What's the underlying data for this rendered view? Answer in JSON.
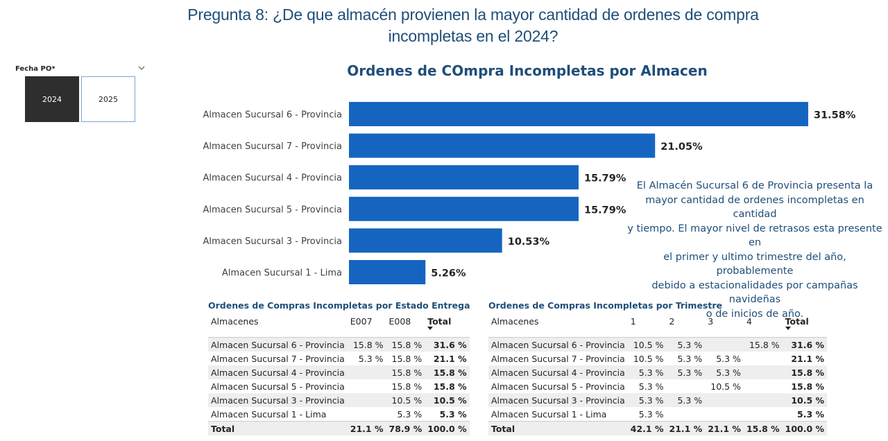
{
  "page": {
    "title": "Pregunta 8: ¿De que almacén provienen la mayor cantidad de ordenes de compra\nincompletas en el 2024?"
  },
  "slicer": {
    "label": "Fecha PO*",
    "options": [
      "2024",
      "2025"
    ],
    "selected": "2024"
  },
  "chart_data": {
    "type": "bar",
    "orientation": "horizontal",
    "title": "Ordenes de COmpra Incompletas por Almacen",
    "categories": [
      "Almacen Sucursal 6 - Provincia",
      "Almacen Sucursal 7 - Provincia",
      "Almacen Sucursal 4 - Provincia",
      "Almacen Sucursal 5 - Provincia",
      "Almacen Sucursal 3 - Provincia",
      "Almacen Sucursal 1 - Lima"
    ],
    "values": [
      31.58,
      21.05,
      15.79,
      15.79,
      10.53,
      5.26
    ],
    "data_labels": [
      "31.58%",
      "21.05%",
      "15.79%",
      "15.79%",
      "10.53%",
      "5.26%"
    ],
    "bar_color": "#1565c0",
    "xlim": [
      0,
      31.58
    ],
    "grid": false
  },
  "note": {
    "text": "El Almacén Sucursal 6 de Provincia presenta la\nmayor cantidad de ordenes incompletas en cantidad\ny tiempo. El mayor nivel de retrasos esta presente en\nel primer y ultimo trimestre del año, probablemente\ndebido a estacionalidades por campañas navideñas\no de inicios de año."
  },
  "table_estado": {
    "title": "Ordenes de Compras Incompletas por Estado Entrega",
    "columns": [
      "Almacenes",
      "E007",
      "E008",
      "Total"
    ],
    "rows": [
      [
        "Almacen Sucursal 6 - Provincia",
        "15.8 %",
        "15.8 %",
        "31.6 %"
      ],
      [
        "Almacen Sucursal 7 - Provincia",
        "5.3 %",
        "15.8 %",
        "21.1 %"
      ],
      [
        "Almacen Sucursal 4 - Provincia",
        "",
        "15.8 %",
        "15.8 %"
      ],
      [
        "Almacen Sucursal 5 - Provincia",
        "",
        "15.8 %",
        "15.8 %"
      ],
      [
        "Almacen Sucursal 3 - Provincia",
        "",
        "10.5 %",
        "10.5 %"
      ],
      [
        "Almacen Sucursal 1 - Lima",
        "",
        "5.3 %",
        "5.3 %"
      ]
    ],
    "total": [
      "Total",
      "21.1 %",
      "78.9 %",
      "100.0 %"
    ]
  },
  "table_trimestre": {
    "title": "Ordenes de Compras Incompletas por Trimestre",
    "columns": [
      "Almacenes",
      "1",
      "2",
      "3",
      "4",
      "Total"
    ],
    "rows": [
      [
        "Almacen Sucursal 6 - Provincia",
        "10.5 %",
        "5.3 %",
        "",
        "15.8 %",
        "31.6 %"
      ],
      [
        "Almacen Sucursal 7 - Provincia",
        "10.5 %",
        "5.3 %",
        "5.3 %",
        "",
        "21.1 %"
      ],
      [
        "Almacen Sucursal 4 - Provincia",
        "5.3 %",
        "5.3 %",
        "5.3 %",
        "",
        "15.8 %"
      ],
      [
        "Almacen Sucursal 5 - Provincia",
        "5.3 %",
        "",
        "10.5 %",
        "",
        "15.8 %"
      ],
      [
        "Almacen Sucursal 3 - Provincia",
        "5.3 %",
        "5.3 %",
        "",
        "",
        "10.5 %"
      ],
      [
        "Almacen Sucursal 1 - Lima",
        "5.3 %",
        "",
        "",
        "",
        "5.3 %"
      ]
    ],
    "total": [
      "Total",
      "42.1 %",
      "21.1 %",
      "21.1 %",
      "15.8 %",
      "100.0 %"
    ]
  }
}
